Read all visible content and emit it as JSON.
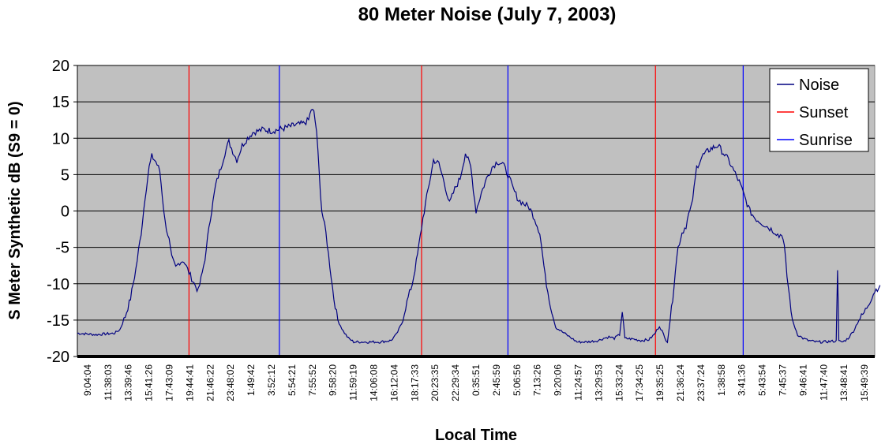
{
  "chart_data": {
    "type": "line",
    "title": "80 Meter Noise (July 7, 2003)",
    "xlabel": "Local Time",
    "ylabel": "S Meter Synthetic dB (S9 = 0)",
    "ylim": [
      -20,
      20
    ],
    "yticks": [
      20,
      15,
      10,
      5,
      0,
      -5,
      -10,
      -15,
      -20
    ],
    "x_tick_labels": [
      "9:04:04",
      "11:38:03",
      "13:39:46",
      "15:41:26",
      "17:43:09",
      "19:44:41",
      "21:46:22",
      "23:48:02",
      "1:49:42",
      "3:52:12",
      "5:54:21",
      "7:55:52",
      "9:58:20",
      "11:59:19",
      "14:06:08",
      "16:12:04",
      "18:17:33",
      "20:23:35",
      "22:29:34",
      "0:35:51",
      "2:45:59",
      "5:06:56",
      "7:13:26",
      "9:20:06",
      "11:24:57",
      "13:29:53",
      "15:33:24",
      "17:34:25",
      "19:35:25",
      "21:36:24",
      "23:37:24",
      "1:38:58",
      "3:41:36",
      "5:43:54",
      "7:45:37",
      "9:46:41",
      "11:47:40",
      "13:48:41",
      "15:49:39"
    ],
    "x_tick_count": 39,
    "grid": true,
    "legend_position": "top-right",
    "background_color": "#c0c0c0",
    "series": [
      {
        "name": "Noise",
        "color": "#000080",
        "points": [
          [
            0,
            -16.8
          ],
          [
            0.7,
            -17.0
          ],
          [
            1.4,
            -16.8
          ],
          [
            1.6,
            -16.3
          ],
          [
            1.8,
            -14.5
          ],
          [
            2.0,
            -12.0
          ],
          [
            2.2,
            -8.0
          ],
          [
            2.4,
            -3.0
          ],
          [
            2.55,
            2.0
          ],
          [
            2.7,
            6.0
          ],
          [
            2.8,
            7.5
          ],
          [
            2.95,
            6.8
          ],
          [
            3.1,
            5.5
          ],
          [
            3.2,
            2.0
          ],
          [
            3.3,
            -1.5
          ],
          [
            3.45,
            -4.0
          ],
          [
            3.55,
            -6.5
          ],
          [
            3.7,
            -7.8
          ],
          [
            3.85,
            -7.0
          ],
          [
            4.0,
            -6.8
          ],
          [
            4.2,
            -8.5
          ],
          [
            4.4,
            -10.0
          ],
          [
            4.55,
            -11.0
          ],
          [
            4.7,
            -8.5
          ],
          [
            4.85,
            -5.5
          ],
          [
            4.95,
            -2.0
          ],
          [
            5.05,
            0.0
          ],
          [
            5.2,
            3.5
          ],
          [
            5.4,
            6.0
          ],
          [
            5.55,
            8.0
          ],
          [
            5.7,
            9.5
          ],
          [
            5.85,
            8.2
          ],
          [
            6.0,
            7.0
          ],
          [
            6.2,
            9.0
          ],
          [
            6.4,
            10.0
          ],
          [
            6.6,
            10.8
          ],
          [
            6.8,
            11.0
          ],
          [
            7.0,
            11.2
          ],
          [
            7.3,
            11.0
          ],
          [
            7.6,
            11.2
          ],
          [
            7.9,
            11.5
          ],
          [
            8.2,
            11.8
          ],
          [
            8.5,
            12.0
          ],
          [
            8.7,
            12.5
          ],
          [
            8.8,
            14.0
          ],
          [
            8.9,
            13.5
          ],
          [
            9.0,
            11.0
          ],
          [
            9.1,
            5.0
          ],
          [
            9.2,
            0.0
          ],
          [
            9.35,
            -3.0
          ],
          [
            9.45,
            -6.0
          ],
          [
            9.55,
            -9.0
          ],
          [
            9.65,
            -12.0
          ],
          [
            9.8,
            -15.0
          ],
          [
            10.0,
            -16.5
          ],
          [
            10.2,
            -17.5
          ],
          [
            10.4,
            -18.0
          ],
          [
            10.7,
            -18.0
          ],
          [
            11.0,
            -18.0
          ],
          [
            11.4,
            -18.0
          ],
          [
            11.8,
            -17.8
          ],
          [
            12.0,
            -17.0
          ],
          [
            12.2,
            -15.5
          ],
          [
            12.4,
            -12.5
          ],
          [
            12.6,
            -10.0
          ],
          [
            12.8,
            -6.0
          ],
          [
            13.0,
            -1.0
          ],
          [
            13.2,
            3.0
          ],
          [
            13.4,
            7.0
          ],
          [
            13.6,
            6.5
          ],
          [
            13.8,
            4.0
          ],
          [
            14.0,
            1.0
          ],
          [
            14.2,
            3.0
          ],
          [
            14.4,
            4.5
          ],
          [
            14.6,
            8.0
          ],
          [
            14.8,
            6.0
          ],
          [
            14.9,
            3.0
          ],
          [
            15.0,
            0.0
          ],
          [
            15.2,
            2.5
          ],
          [
            15.4,
            4.5
          ],
          [
            15.6,
            6.0
          ],
          [
            15.8,
            6.8
          ],
          [
            16.0,
            6.5
          ],
          [
            16.2,
            5.0
          ],
          [
            16.4,
            3.0
          ],
          [
            16.6,
            1.5
          ],
          [
            16.8,
            1.0
          ],
          [
            17.0,
            0.5
          ],
          [
            17.2,
            -1.0
          ],
          [
            17.4,
            -3.0
          ],
          [
            17.5,
            -6.0
          ],
          [
            17.6,
            -9.0
          ],
          [
            17.8,
            -13.0
          ],
          [
            18.0,
            -16.0
          ],
          [
            18.2,
            -16.5
          ],
          [
            18.4,
            -17.0
          ],
          [
            18.6,
            -17.5
          ],
          [
            18.8,
            -18.0
          ],
          [
            19.2,
            -18.0
          ],
          [
            19.6,
            -17.8
          ],
          [
            19.8,
            -17.5
          ],
          [
            20.0,
            -17.3
          ],
          [
            20.2,
            -17.5
          ],
          [
            20.4,
            -17.0
          ],
          [
            20.5,
            -13.8
          ],
          [
            20.6,
            -17.5
          ],
          [
            20.9,
            -17.6
          ],
          [
            21.2,
            -17.8
          ],
          [
            21.5,
            -17.7
          ],
          [
            21.7,
            -17.0
          ],
          [
            21.9,
            -15.8
          ],
          [
            22.0,
            -16.5
          ],
          [
            22.1,
            -17.5
          ],
          [
            22.2,
            -17.9
          ],
          [
            22.3,
            -15.0
          ],
          [
            22.4,
            -12.0
          ],
          [
            22.5,
            -8.0
          ],
          [
            22.6,
            -5.0
          ],
          [
            22.75,
            -3.0
          ],
          [
            22.9,
            -2.0
          ],
          [
            23.0,
            -0.5
          ],
          [
            23.1,
            0.5
          ],
          [
            23.2,
            3.0
          ],
          [
            23.3,
            6.0
          ],
          [
            23.5,
            7.5
          ],
          [
            23.8,
            8.5
          ],
          [
            24.1,
            9.0
          ],
          [
            24.3,
            8.0
          ],
          [
            24.5,
            7.0
          ],
          [
            24.7,
            5.5
          ],
          [
            24.9,
            4.0
          ],
          [
            25.1,
            2.0
          ],
          [
            25.3,
            0.0
          ],
          [
            25.5,
            -1.0
          ],
          [
            25.7,
            -1.5
          ],
          [
            25.9,
            -2.0
          ],
          [
            26.1,
            -2.5
          ],
          [
            26.3,
            -3.0
          ],
          [
            26.4,
            -3.5
          ],
          [
            26.5,
            -3.0
          ],
          [
            26.6,
            -5.0
          ],
          [
            26.7,
            -9.0
          ],
          [
            26.8,
            -12.0
          ],
          [
            26.9,
            -15.0
          ],
          [
            27.1,
            -17.0
          ],
          [
            27.3,
            -17.5
          ],
          [
            27.5,
            -17.8
          ],
          [
            27.8,
            -18.0
          ],
          [
            28.1,
            -18.0
          ],
          [
            28.4,
            -17.9
          ],
          [
            28.55,
            -17.9
          ],
          [
            28.6,
            -7.8
          ],
          [
            28.65,
            -17.9
          ],
          [
            28.8,
            -18.0
          ],
          [
            29.0,
            -17.5
          ],
          [
            29.2,
            -16.5
          ],
          [
            29.4,
            -15.0
          ],
          [
            29.6,
            -14.0
          ],
          [
            29.8,
            -12.5
          ],
          [
            30.0,
            -11.0
          ],
          [
            30.2,
            -10.2
          ]
        ]
      },
      {
        "name": "Sunset",
        "color": "#ff0000",
        "x": [
          4.2,
          12.95,
          21.75
        ]
      },
      {
        "name": "Sunrise",
        "color": "#0000ff",
        "x": [
          7.6,
          16.2,
          25.05
        ]
      }
    ],
    "x_domain": [
      0,
      30.0
    ]
  },
  "legend": [
    "Noise",
    "Sunset",
    "Sunrise"
  ]
}
